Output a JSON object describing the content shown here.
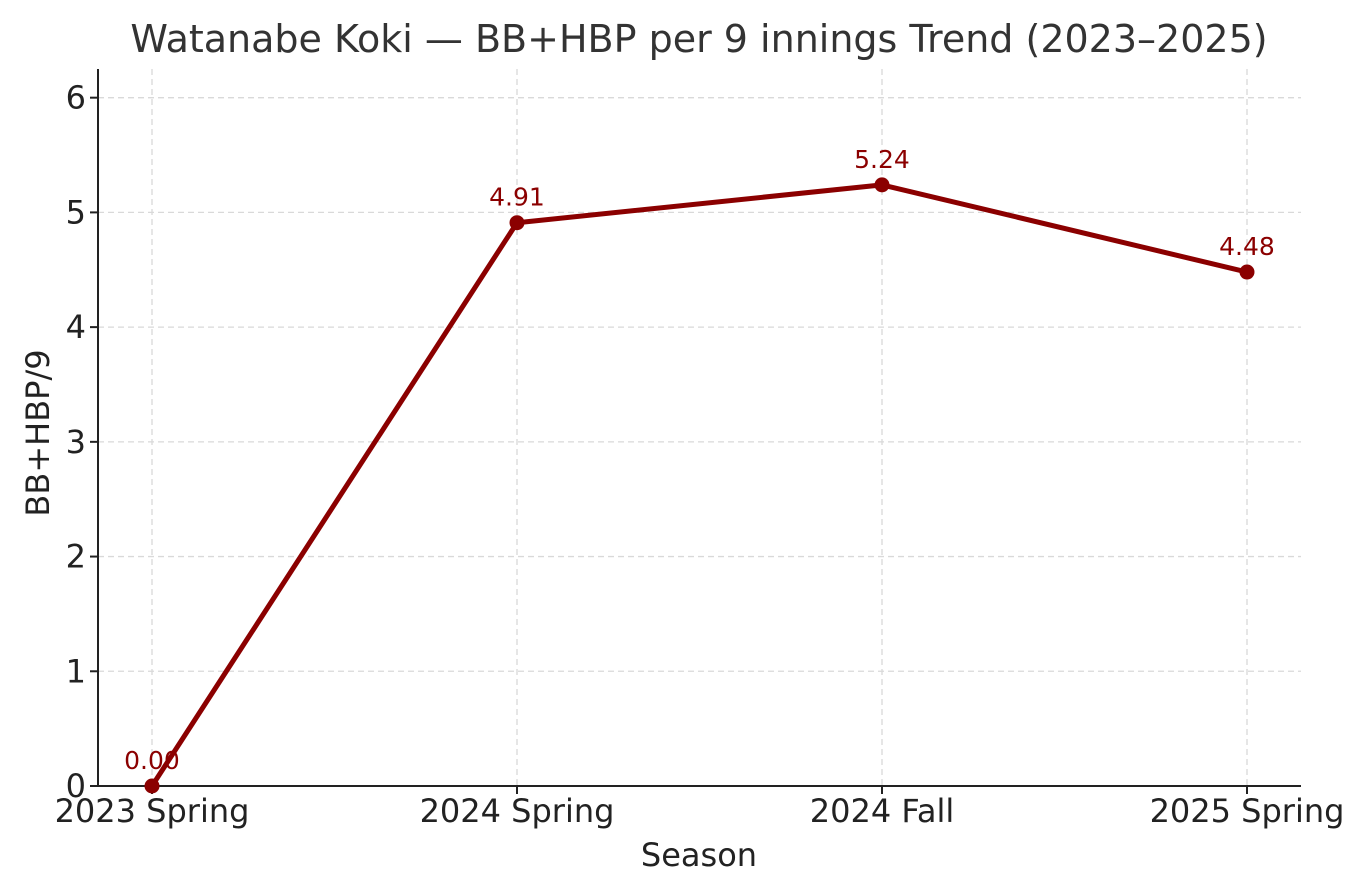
{
  "chart_data": {
    "type": "line",
    "title": "Watanabe Koki — BB+HBP per 9 innings Trend (2023–2025)",
    "xlabel": "Season",
    "ylabel": "BB+HBP/9",
    "categories": [
      "2023 Spring",
      "2024 Spring",
      "2024 Fall",
      "2025 Spring"
    ],
    "series": [
      {
        "values": [
          0.0,
          4.91,
          5.24,
          4.48
        ],
        "data_labels": [
          "0.00",
          "4.91",
          "5.24",
          "4.48"
        ],
        "color": "#8b0000"
      }
    ],
    "ylim": [
      0,
      6.25
    ],
    "yticks": [
      0,
      1,
      2,
      3,
      4,
      5,
      6
    ],
    "grid": true,
    "grid_style": "dashed",
    "markers": true
  }
}
